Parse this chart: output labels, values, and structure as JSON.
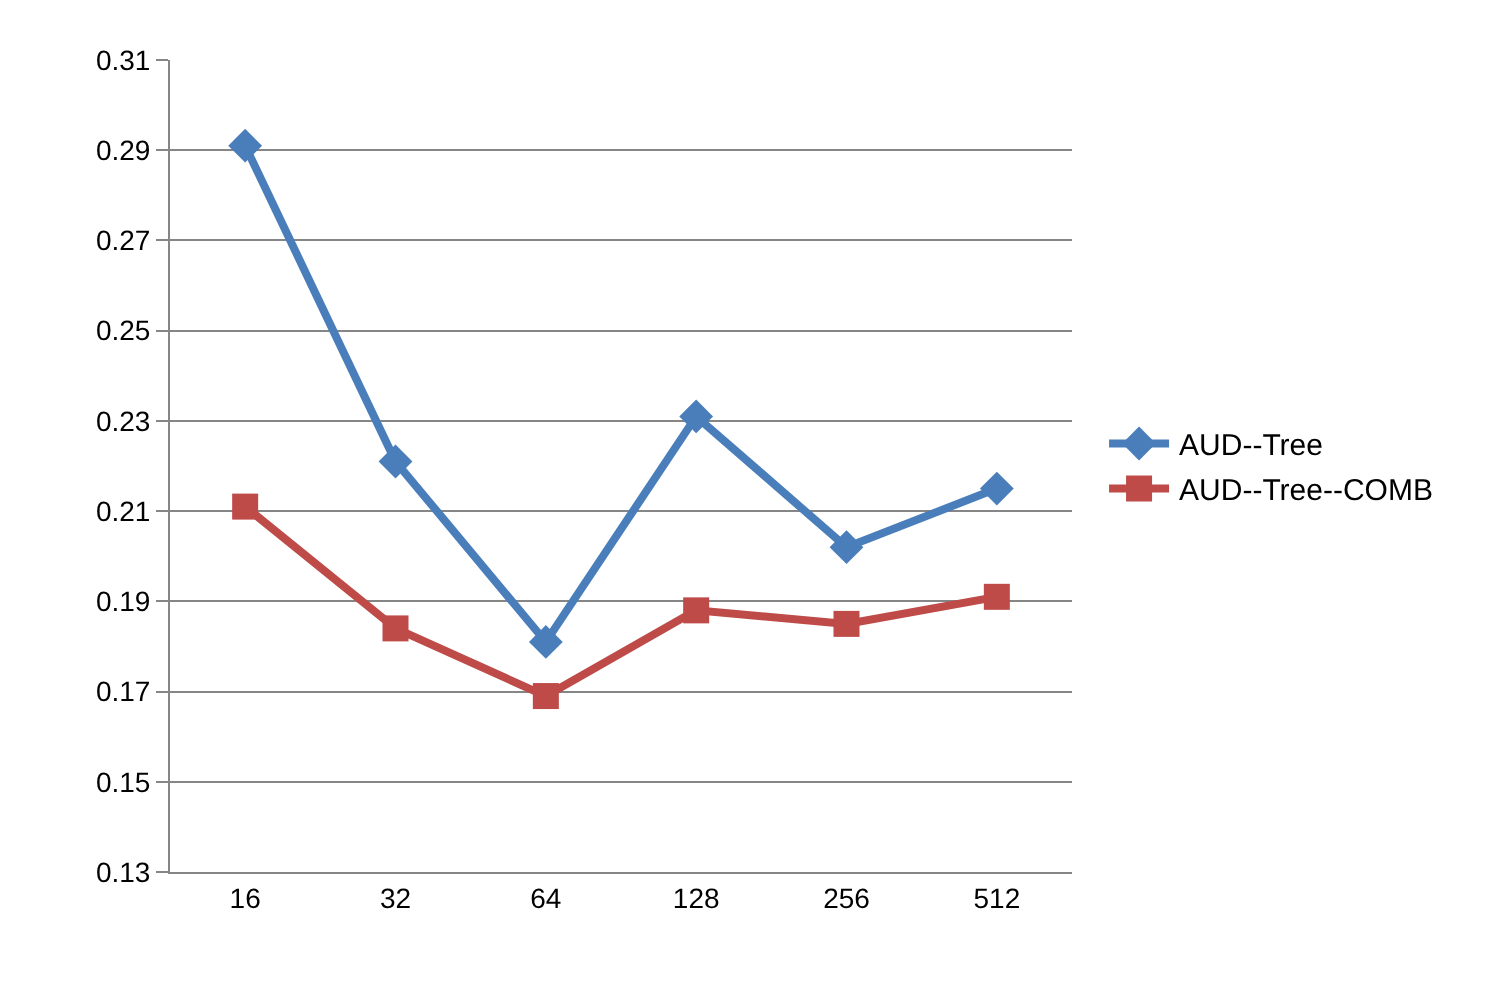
{
  "chart_data": {
    "type": "line",
    "categories": [
      "16",
      "32",
      "64",
      "128",
      "256",
      "512"
    ],
    "series": [
      {
        "name": "AUD--Tree",
        "color": "#4a7ebb",
        "marker": "diamond",
        "values": [
          0.291,
          0.221,
          0.181,
          0.231,
          0.202,
          0.215
        ]
      },
      {
        "name": "AUD--Tree--COMB",
        "color": "#be4b48",
        "marker": "square",
        "values": [
          0.211,
          0.184,
          0.169,
          0.188,
          0.185,
          0.191
        ]
      }
    ],
    "ylim": [
      0.13,
      0.31
    ],
    "yticks": [
      0.13,
      0.15,
      0.17,
      0.19,
      0.21,
      0.23,
      0.25,
      0.27,
      0.29,
      0.31
    ],
    "grid": "y",
    "legend": "right"
  }
}
